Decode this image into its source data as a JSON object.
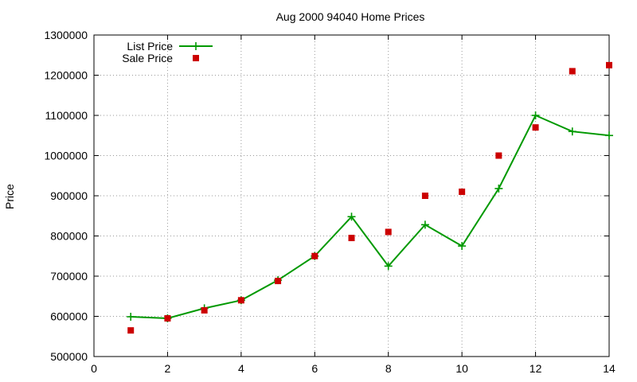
{
  "chart_data": {
    "type": "line",
    "title": "Aug 2000 94040 Home Prices",
    "ylabel": "Price",
    "xlabel": "",
    "xlim": [
      0,
      14
    ],
    "ylim": [
      500000,
      1300000
    ],
    "xticks": [
      0,
      2,
      4,
      6,
      8,
      10,
      12,
      14
    ],
    "yticks": [
      500000,
      600000,
      700000,
      800000,
      900000,
      1000000,
      1100000,
      1200000,
      1300000
    ],
    "grid": true,
    "legend_position": "top-left",
    "series": [
      {
        "name": "List Price",
        "style": "line-with-plus-markers",
        "color": "#009900",
        "x": [
          1,
          2,
          3,
          4,
          5,
          6,
          7,
          8,
          9,
          10,
          11,
          12,
          13,
          14
        ],
        "y": [
          599000,
          595000,
          620000,
          640000,
          690000,
          750000,
          848000,
          725000,
          828000,
          775000,
          918000,
          1100000,
          1060000,
          1050000
        ]
      },
      {
        "name": "Sale Price",
        "style": "square-markers",
        "color": "#cc0000",
        "x": [
          1,
          2,
          3,
          4,
          5,
          6,
          7,
          8,
          9,
          10,
          11,
          12,
          13,
          14
        ],
        "y": [
          565000,
          595000,
          615000,
          640000,
          688000,
          750000,
          795000,
          810000,
          900000,
          910000,
          1000000,
          1070000,
          1210000,
          1225000
        ]
      }
    ]
  }
}
